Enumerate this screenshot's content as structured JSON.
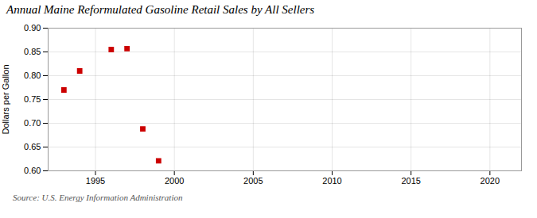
{
  "chart_data": {
    "type": "scatter",
    "title": "Annual Maine Reformulated Gasoline Retail Sales by All Sellers",
    "ylabel": "Dollars per Gallon",
    "annotations": [
      "Source: U.S. Energy Information Administration"
    ],
    "x": [
      1993,
      1994,
      1996,
      1997,
      1998,
      1999
    ],
    "values": [
      0.77,
      0.81,
      0.855,
      0.857,
      0.688,
      0.621
    ],
    "color": "#cc0000",
    "marker": "square",
    "xlim": [
      1992,
      2022
    ],
    "ylim": [
      0.6,
      0.9
    ],
    "xticks": [
      1995,
      2000,
      2005,
      2010,
      2015,
      2020
    ],
    "yticks": [
      {
        "value": 0.6,
        "label": "0.60"
      },
      0.65,
      {
        "value": 0.7,
        "label": "0.70"
      },
      0.75,
      {
        "value": 0.8,
        "label": "0.80"
      },
      0.85,
      {
        "value": 0.9,
        "label": "0.90"
      }
    ],
    "grid": true
  }
}
